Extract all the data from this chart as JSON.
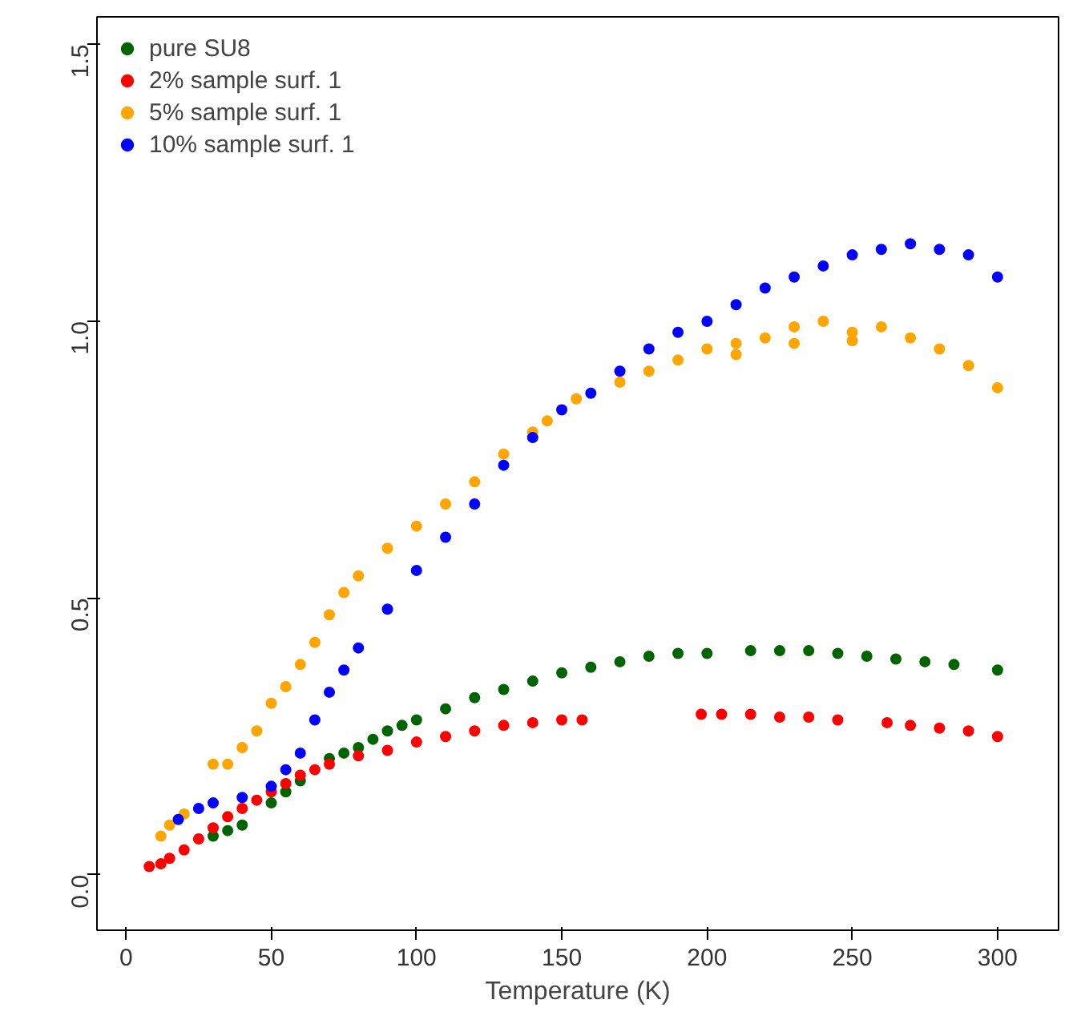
{
  "chart_data": {
    "type": "scatter",
    "xlabel": "Temperature (K)",
    "xlim": [
      -10,
      321
    ],
    "ylim": [
      -0.1,
      1.55
    ],
    "xticks": [
      0,
      50,
      100,
      150,
      200,
      250,
      300
    ],
    "yticks": [
      {
        "value": 0,
        "label": "0.0"
      },
      {
        "value": 0.5,
        "label": "0.5"
      },
      {
        "value": 1,
        "label": "1.0"
      },
      {
        "value": 1.5,
        "label": "1.5"
      }
    ],
    "grid": false,
    "legend": "top left",
    "marker": "circle",
    "series": [
      {
        "name": "pure SU8",
        "color": "#006400",
        "x": [
          30,
          35,
          40,
          50,
          55,
          60,
          65,
          70,
          75,
          80,
          85,
          90,
          95,
          100,
          110,
          120,
          130,
          140,
          150,
          160,
          170,
          180,
          190,
          200,
          215,
          225,
          235,
          245,
          255,
          265,
          275,
          285,
          300
        ],
        "values": [
          0.07,
          0.08,
          0.09,
          0.13,
          0.15,
          0.17,
          null,
          0.21,
          0.22,
          0.23,
          0.245,
          0.26,
          0.27,
          0.28,
          0.3,
          0.32,
          0.335,
          0.35,
          0.365,
          0.375,
          0.385,
          0.395,
          0.4,
          0.4,
          0.405,
          0.405,
          0.405,
          0.4,
          0.395,
          0.39,
          0.385,
          0.38,
          0.37
        ]
      },
      {
        "name": "2% sample surf. 1",
        "color": "#ff0000",
        "x": [
          8,
          12,
          15,
          20,
          25,
          30,
          35,
          40,
          45,
          50,
          55,
          60,
          65,
          70,
          80,
          90,
          100,
          110,
          120,
          130,
          140,
          150,
          157,
          198,
          205,
          215,
          225,
          235,
          245,
          262,
          270,
          280,
          290,
          300
        ],
        "values": [
          0.015,
          0.02,
          0.03,
          0.045,
          0.065,
          0.085,
          0.105,
          0.12,
          0.135,
          0.15,
          0.165,
          0.18,
          0.19,
          0.2,
          0.215,
          0.225,
          0.24,
          0.25,
          0.26,
          0.27,
          0.275,
          0.28,
          0.28,
          0.29,
          0.29,
          0.29,
          0.285,
          0.285,
          0.28,
          0.275,
          0.27,
          0.265,
          0.26,
          0.25
        ]
      },
      {
        "name": "5% sample surf. 1",
        "color": "#ffa500",
        "x": [
          12,
          15,
          20,
          30,
          35,
          40,
          45,
          50,
          55,
          60,
          65,
          70,
          75,
          80,
          90,
          100,
          110,
          120,
          130,
          140,
          145,
          155,
          170,
          180,
          190,
          200,
          210,
          210,
          220,
          230,
          230,
          240,
          250,
          250,
          260,
          270,
          280,
          290,
          300
        ],
        "values": [
          0.07,
          0.09,
          0.11,
          0.2,
          0.2,
          0.23,
          0.26,
          0.31,
          0.34,
          0.38,
          0.42,
          0.47,
          0.51,
          0.54,
          0.59,
          0.63,
          0.67,
          0.71,
          0.76,
          0.8,
          0.82,
          0.86,
          0.89,
          0.91,
          0.93,
          0.95,
          0.96,
          0.94,
          0.97,
          0.99,
          0.96,
          1.0,
          0.98,
          0.965,
          0.99,
          0.97,
          0.95,
          0.92,
          0.88
        ]
      },
      {
        "name": "10% sample surf. 1",
        "color": "#0000ff",
        "x": [
          18,
          25,
          30,
          40,
          50,
          55,
          60,
          65,
          70,
          75,
          80,
          90,
          100,
          110,
          120,
          130,
          140,
          150,
          160,
          170,
          180,
          190,
          200,
          210,
          220,
          230,
          240,
          250,
          260,
          270,
          280,
          290,
          300
        ],
        "values": [
          0.1,
          0.12,
          0.13,
          0.14,
          0.16,
          0.19,
          0.22,
          0.28,
          0.33,
          0.37,
          0.41,
          0.48,
          0.55,
          0.61,
          0.67,
          0.74,
          0.79,
          0.84,
          0.87,
          0.91,
          0.95,
          0.98,
          1.0,
          1.03,
          1.06,
          1.08,
          1.1,
          1.12,
          1.13,
          1.14,
          1.13,
          1.12,
          1.08
        ]
      }
    ]
  }
}
